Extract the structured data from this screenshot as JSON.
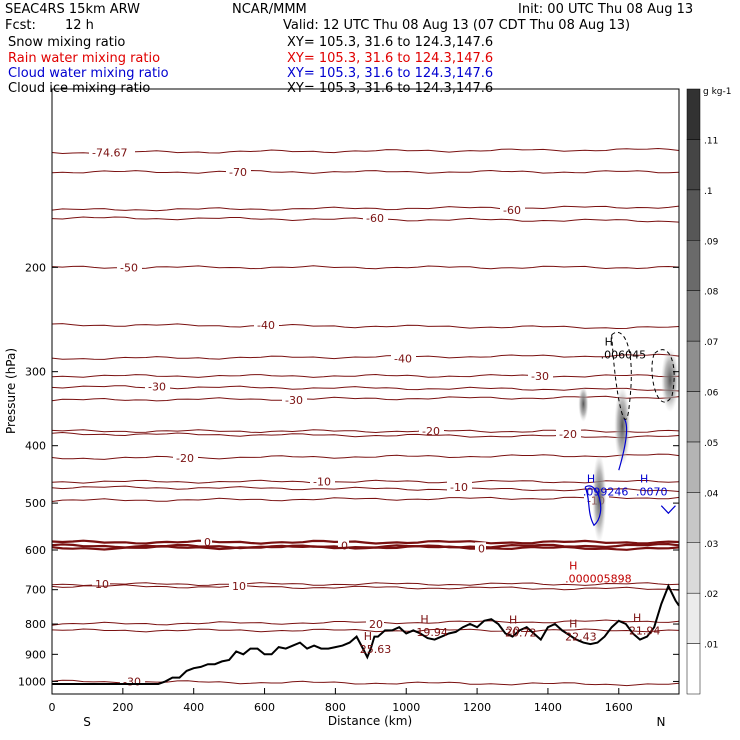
{
  "header": {
    "model": "SEAC4RS 15km ARW",
    "center": "NCAR/MMM",
    "init": "Init: 00 UTC Thu 08 Aug 13",
    "fcst_label": "Fcst:",
    "fcst_value": "12 h",
    "valid": "Valid: 12 UTC Thu 08 Aug 13 (07 CDT Thu 08 Aug 13)",
    "fields": [
      {
        "name": "Snow mixing ratio",
        "xy": "XY= 105.3, 31.6 to 124.3,147.6",
        "color": "#000000"
      },
      {
        "name": "Rain water mixing ratio",
        "xy": "XY= 105.3, 31.6 to 124.3,147.6",
        "color": "#e00000"
      },
      {
        "name": "Cloud water mixing ratio",
        "xy": "XY= 105.3, 31.6 to 124.3,147.6",
        "color": "#0000d0"
      },
      {
        "name": "Cloud ice mixing ratio",
        "xy": "XY= 105.3, 31.6 to 124.3,147.6",
        "color": "#000000"
      }
    ]
  },
  "chart_data": {
    "type": "line",
    "xlabel": "Distance (km)",
    "ylabel": "Pressure (hPa)",
    "x_ticks": [
      "0",
      "200",
      "400",
      "600",
      "800",
      "1000",
      "1200",
      "1400",
      "1600"
    ],
    "y_ticks": [
      "200",
      "300",
      "400",
      "500",
      "600",
      "700",
      "800",
      "900",
      "1000"
    ],
    "x_end_labels": {
      "left": "S",
      "right": "N"
    },
    "xlim": [
      0,
      1770
    ],
    "ylim": [
      1050,
      100
    ],
    "y_scale": "log",
    "colors": {
      "isotherm": "#7a1010",
      "terrain": "#000000",
      "cloud_water": "#0000d0",
      "rain": "#c00000"
    },
    "isotherms": [
      {
        "label": "-74.67",
        "p": 128
      },
      {
        "label": "-70",
        "p": 138
      },
      {
        "label": "-60",
        "p": 165
      },
      {
        "label": "-60",
        "p": 160
      },
      {
        "label": "-50",
        "p": 200
      },
      {
        "label": "-40",
        "p": 250
      },
      {
        "label": "-40",
        "p": 285
      },
      {
        "label": "-30",
        "p": 305
      },
      {
        "label": "-30",
        "p": 318
      },
      {
        "label": "-30",
        "p": 335
      },
      {
        "label": "-20",
        "p": 378
      },
      {
        "label": "-20",
        "p": 382
      },
      {
        "label": "-20",
        "p": 420
      },
      {
        "label": "-10",
        "p": 460
      },
      {
        "label": "-10",
        "p": 470
      },
      {
        "label": "-10",
        "p": 495
      },
      {
        "label": "0",
        "p": 582
      },
      {
        "label": "0",
        "p": 590
      },
      {
        "label": "0",
        "p": 596
      },
      {
        "label": "10",
        "p": 685
      },
      {
        "label": "10",
        "p": 690
      },
      {
        "label": "20",
        "p": 800
      },
      {
        "label": "20",
        "p": 820
      },
      {
        "label": "-30",
        "p": 1000
      }
    ],
    "terrain": {
      "x": [
        0,
        300,
        320,
        340,
        360,
        380,
        400,
        420,
        440,
        460,
        480,
        500,
        520,
        540,
        560,
        580,
        600,
        620,
        640,
        660,
        680,
        700,
        720,
        740,
        760,
        780,
        800,
        820,
        840,
        860,
        880,
        890,
        900,
        910,
        920,
        940,
        960,
        980,
        1000,
        1020,
        1040,
        1060,
        1080,
        1100,
        1120,
        1140,
        1160,
        1180,
        1200,
        1220,
        1240,
        1260,
        1280,
        1300,
        1320,
        1340,
        1360,
        1380,
        1400,
        1420,
        1440,
        1460,
        1480,
        1500,
        1520,
        1540,
        1560,
        1580,
        1600,
        1620,
        1640,
        1660,
        1680,
        1700,
        1720,
        1740,
        1760,
        1770
      ],
      "p": [
        1010,
        1010,
        1000,
        985,
        985,
        960,
        950,
        945,
        935,
        935,
        925,
        920,
        890,
        900,
        880,
        880,
        900,
        900,
        875,
        880,
        870,
        860,
        880,
        870,
        880,
        880,
        875,
        870,
        860,
        840,
        885,
        910,
        880,
        840,
        840,
        820,
        820,
        810,
        830,
        820,
        830,
        845,
        850,
        840,
        830,
        825,
        810,
        800,
        810,
        790,
        785,
        800,
        830,
        840,
        820,
        810,
        830,
        850,
        810,
        800,
        820,
        835,
        850,
        860,
        865,
        860,
        840,
        810,
        790,
        800,
        830,
        850,
        840,
        810,
        740,
        690,
        730,
        745
      ]
    },
    "maxima": [
      {
        "label": "25.63",
        "x": 880,
        "p": 885
      },
      {
        "label": "19.94",
        "x": 1040,
        "p": 828
      },
      {
        "label": "20.72",
        "x": 1290,
        "p": 830
      },
      {
        "label": "22.43",
        "x": 1460,
        "p": 843
      },
      {
        "label": "21.94",
        "x": 1640,
        "p": 823
      },
      {
        "label": ".006045",
        "x": 1560,
        "p": 282,
        "field": "snow"
      },
      {
        "label": ".099246",
        "x": 1510,
        "p": 480,
        "field": "cloud_water"
      },
      {
        "label": ".0070",
        "x": 1660,
        "p": 480,
        "field": "cloud_water"
      },
      {
        "label": ".000005898",
        "x": 1460,
        "p": 673,
        "field": "rain"
      }
    ],
    "colorbar": {
      "unit": "g kg-1",
      "levels": [
        ".01",
        ".02",
        ".03",
        ".04",
        ".05",
        ".06",
        ".07",
        ".08",
        ".09",
        ".1",
        ".11"
      ]
    }
  }
}
